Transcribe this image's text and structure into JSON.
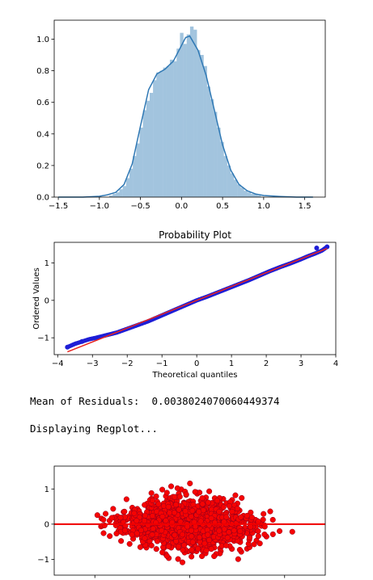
{
  "output": {
    "mean_label": "Mean of Residuals:",
    "mean_value": "0.0038024070060449374",
    "regplot_msg": "Displaying Regplot..."
  },
  "chart_data": [
    {
      "type": "bar",
      "subtype": "histogram_with_kde",
      "xlim": [
        -1.55,
        1.75
      ],
      "ylim": [
        0,
        1.12
      ],
      "xticks": [
        "−1.5",
        "−1.0",
        "−0.5",
        "0.0",
        "0.5",
        "1.0",
        "1.5"
      ],
      "xtick_values": [
        -1.5,
        -1.0,
        -0.5,
        0.0,
        0.5,
        1.0,
        1.5
      ],
      "yticks": [
        "0.0",
        "0.2",
        "0.4",
        "0.6",
        "0.8",
        "1.0"
      ],
      "ytick_values": [
        0.0,
        0.2,
        0.4,
        0.6,
        0.8,
        1.0
      ],
      "bin_start": -0.88,
      "bin_width": 0.041,
      "bin_heights": [
        0.01,
        0.02,
        0.03,
        0.05,
        0.07,
        0.12,
        0.18,
        0.26,
        0.34,
        0.44,
        0.55,
        0.61,
        0.66,
        0.74,
        0.79,
        0.8,
        0.82,
        0.83,
        0.87,
        0.86,
        0.94,
        1.04,
        0.97,
        1.03,
        1.08,
        1.06,
        0.93,
        0.9,
        0.83,
        0.7,
        0.62,
        0.54,
        0.44,
        0.35,
        0.26,
        0.2,
        0.15,
        0.11,
        0.08,
        0.06,
        0.04,
        0.03,
        0.02,
        0.02,
        0.01
      ],
      "kde": {
        "x": [
          -1.5,
          -1.2,
          -1.0,
          -0.9,
          -0.8,
          -0.7,
          -0.6,
          -0.5,
          -0.4,
          -0.3,
          -0.2,
          -0.1,
          0.0,
          0.05,
          0.1,
          0.2,
          0.3,
          0.4,
          0.5,
          0.6,
          0.7,
          0.8,
          0.9,
          1.0,
          1.2,
          1.4,
          1.6
        ],
        "y": [
          0.0,
          0.0,
          0.005,
          0.015,
          0.03,
          0.08,
          0.21,
          0.45,
          0.68,
          0.78,
          0.81,
          0.86,
          0.96,
          1.01,
          1.02,
          0.93,
          0.77,
          0.55,
          0.33,
          0.17,
          0.08,
          0.04,
          0.02,
          0.01,
          0.004,
          0.0,
          0.0
        ]
      },
      "bar_color": "#a2c4de",
      "line_color": "#2f78b4"
    },
    {
      "type": "scatter",
      "subtype": "probability_plot",
      "title": "Probability Plot",
      "xlabel": "Theoretical quantiles",
      "ylabel": "Ordered Values",
      "xlim": [
        -4.1,
        4.0
      ],
      "ylim": [
        -1.45,
        1.55
      ],
      "xticks": [
        "−4",
        "−3",
        "−2",
        "−1",
        "0",
        "1",
        "2",
        "3",
        "4"
      ],
      "xtick_values": [
        -4,
        -3,
        -2,
        -1,
        0,
        1,
        2,
        3,
        4
      ],
      "yticks": [
        "−1",
        "0",
        "1"
      ],
      "ytick_values": [
        -1,
        0,
        1
      ],
      "fit_line": {
        "slope": 0.37,
        "intercept": 0.0
      },
      "curve": {
        "x": [
          -3.72,
          -3.5,
          -3.3,
          -3.1,
          -2.9,
          -2.6,
          -2.3,
          -2.0,
          -1.7,
          -1.4,
          -1.1,
          -0.8,
          -0.5,
          -0.2,
          0.0,
          0.3,
          0.6,
          0.9,
          1.2,
          1.5,
          1.8,
          2.1,
          2.4,
          2.7,
          3.0,
          3.2,
          3.4,
          3.6,
          3.75
        ],
        "y": [
          -1.25,
          -1.16,
          -1.1,
          -1.04,
          -1.0,
          -0.93,
          -0.86,
          -0.76,
          -0.66,
          -0.56,
          -0.44,
          -0.32,
          -0.2,
          -0.08,
          0.0,
          0.1,
          0.21,
          0.32,
          0.43,
          0.54,
          0.66,
          0.78,
          0.89,
          0.99,
          1.1,
          1.18,
          1.25,
          1.33,
          1.43
        ]
      },
      "point_color": "#1f1fd6",
      "line_color": "#e8241f"
    },
    {
      "type": "scatter",
      "subtype": "regplot",
      "xlim": [
        0,
        1
      ],
      "ylim": [
        -1.45,
        1.65
      ],
      "yticks": [
        "−1",
        "0",
        "1"
      ],
      "ytick_values": [
        -1,
        0,
        1
      ],
      "n_points": 1500,
      "cloud": {
        "cx": 0.5,
        "rx": 0.3,
        "sd_y": 0.36
      },
      "hline_y": 0,
      "point_color": "#f50303",
      "edge_color": "#8a001f",
      "line_color": "#f00000"
    }
  ]
}
